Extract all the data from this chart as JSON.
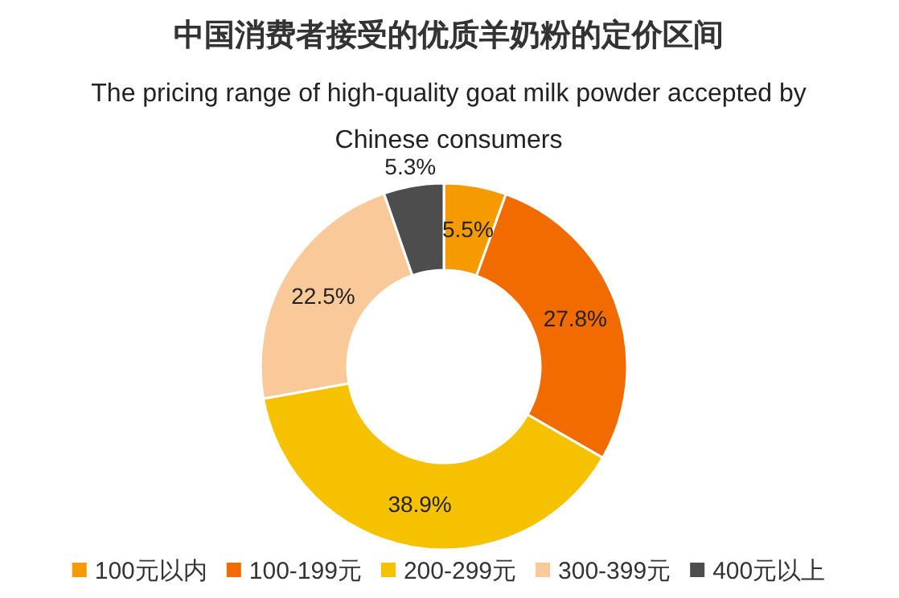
{
  "chart_data": {
    "type": "donut",
    "title": "中国消费者接受的优质羊奶粉的定价区间",
    "subtitle": "The pricing range of high-quality goat milk powder accepted by Chinese consumers",
    "categories": [
      "100元以内",
      "100-199元",
      "200-299元",
      "300-399元",
      "400元以上"
    ],
    "values": [
      5.5,
      27.8,
      38.9,
      22.5,
      5.3
    ],
    "colors": [
      "#f59a00",
      "#f26b00",
      "#f6c200",
      "#f9c99a",
      "#4d4d4d"
    ],
    "value_labels": [
      "5.5%",
      "27.8%",
      "38.9%",
      "22.5%",
      "5.3%"
    ],
    "legend": "bottom"
  }
}
